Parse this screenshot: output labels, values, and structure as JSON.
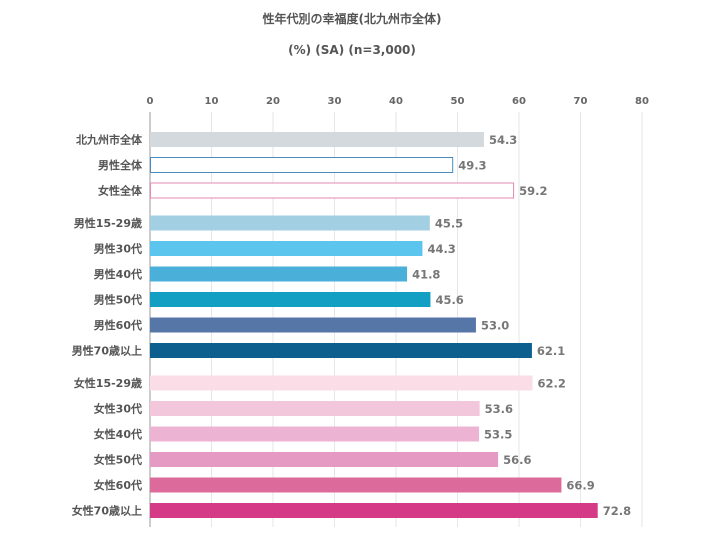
{
  "chart_data": {
    "type": "bar",
    "orientation": "horizontal",
    "title": "性年代別の幸福度(北九州市全体)",
    "subtitle": "(%) (SA) (n=3,000)",
    "xlim": [
      0,
      80
    ],
    "x_ticks": [
      "0",
      "10",
      "20",
      "30",
      "40",
      "50",
      "60",
      "70",
      "80"
    ],
    "grid": true,
    "categories": [
      "北九州市全体",
      "男性全体",
      "女性全体",
      "男性15-29歳",
      "男性30代",
      "男性40代",
      "男性50代",
      "男性60代",
      "男性70歳以上",
      "女性15-29歳",
      "女性30代",
      "女性40代",
      "女性50代",
      "女性60代",
      "女性70歳以上"
    ],
    "values": [
      54.3,
      49.3,
      59.2,
      45.5,
      44.3,
      41.8,
      45.6,
      53.0,
      62.1,
      62.2,
      53.6,
      53.5,
      56.6,
      66.9,
      72.8
    ],
    "value_labels": [
      "54.3",
      "49.3",
      "59.2",
      "45.5",
      "44.3",
      "41.8",
      "45.6",
      "53.0",
      "62.1",
      "62.2",
      "53.6",
      "53.5",
      "56.6",
      "66.9",
      "72.8"
    ],
    "groups": [
      [
        0,
        1,
        2
      ],
      [
        3,
        4,
        5,
        6,
        7,
        8
      ],
      [
        9,
        10,
        11,
        12,
        13,
        14
      ]
    ],
    "bar_styles": [
      {
        "fill": "#d4d9dd",
        "stroke": "none"
      },
      {
        "fill": "#ffffff",
        "stroke": "#4a8bbf"
      },
      {
        "fill": "#ffffff",
        "stroke": "#e48ab4"
      },
      {
        "fill": "#a3cfe3",
        "stroke": "none"
      },
      {
        "fill": "#5cc5ee",
        "stroke": "none"
      },
      {
        "fill": "#4aafd9",
        "stroke": "none"
      },
      {
        "fill": "#139ec4",
        "stroke": "none"
      },
      {
        "fill": "#5676a8",
        "stroke": "none"
      },
      {
        "fill": "#0d5f8e",
        "stroke": "none"
      },
      {
        "fill": "#fadde7",
        "stroke": "none"
      },
      {
        "fill": "#f2c7dc",
        "stroke": "none"
      },
      {
        "fill": "#edb3d2",
        "stroke": "none"
      },
      {
        "fill": "#e59ac3",
        "stroke": "none"
      },
      {
        "fill": "#dc6a9a",
        "stroke": "none"
      },
      {
        "fill": "#d53a86",
        "stroke": "none"
      }
    ]
  }
}
